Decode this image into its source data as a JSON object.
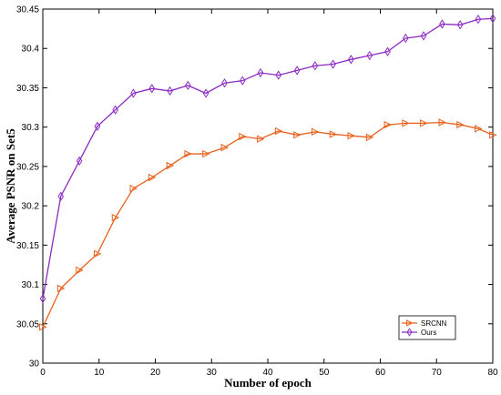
{
  "chart_data": {
    "type": "line",
    "title": "",
    "xlabel": "Number of epoch",
    "ylabel": "Average PSNR on Set5",
    "xlim": [
      0,
      80
    ],
    "ylim": [
      30,
      30.45
    ],
    "xticks": [
      0,
      10,
      20,
      30,
      40,
      50,
      60,
      70,
      80
    ],
    "yticks": [
      30,
      30.05,
      30.1,
      30.15,
      30.2,
      30.25,
      30.3,
      30.35,
      30.4,
      30.45
    ],
    "xtick_labels": [
      "0",
      "10",
      "20",
      "30",
      "40",
      "50",
      "60",
      "70",
      "80"
    ],
    "ytick_labels": [
      "30",
      "30.05",
      "30.1",
      "30.15",
      "30.2",
      "30.25",
      "30.3",
      "30.35",
      "30.4",
      "30.45"
    ],
    "grid": false,
    "legend_position": "bottom-right",
    "x": [
      0,
      3.2,
      6.5,
      9.7,
      12.9,
      16.1,
      19.4,
      22.6,
      25.8,
      29.0,
      32.3,
      35.5,
      38.7,
      41.9,
      45.2,
      48.4,
      51.6,
      54.8,
      58.1,
      61.3,
      64.5,
      67.7,
      71.0,
      74.2,
      77.4,
      80
    ],
    "series": [
      {
        "name": "SRCNN",
        "color": "#E8601C",
        "marker": "triangle-right",
        "values": [
          30.046,
          30.095,
          30.118,
          30.139,
          30.185,
          30.222,
          30.236,
          30.251,
          30.266,
          30.266,
          30.274,
          30.288,
          30.285,
          30.295,
          30.29,
          30.294,
          30.291,
          30.289,
          30.287,
          30.303,
          30.305,
          30.305,
          30.306,
          30.303,
          30.298,
          30.29
        ]
      },
      {
        "name": "Ours",
        "color": "#8B2BC2",
        "marker": "diamond",
        "values": [
          30.082,
          30.212,
          30.257,
          30.301,
          30.322,
          30.343,
          30.349,
          30.346,
          30.353,
          30.343,
          30.356,
          30.359,
          30.369,
          30.366,
          30.372,
          30.378,
          30.38,
          30.386,
          30.391,
          30.396,
          30.413,
          30.416,
          30.431,
          30.43,
          30.437,
          30.438
        ]
      }
    ]
  }
}
